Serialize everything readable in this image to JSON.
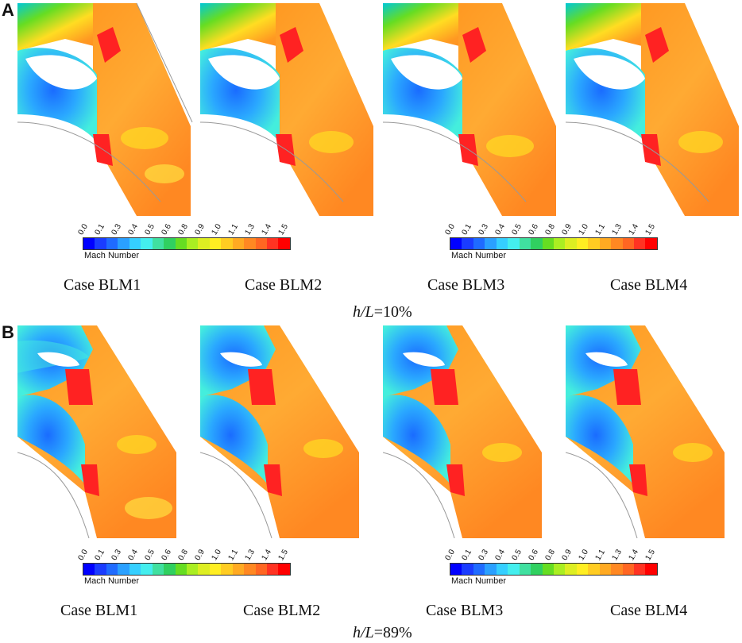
{
  "panels": [
    {
      "letter": "A",
      "cases": [
        "Case BLM1",
        "Case BLM2",
        "Case BLM3",
        "Case BLM4"
      ],
      "label_prefix": "h/L",
      "label_suffix": "=10%"
    },
    {
      "letter": "B",
      "cases": [
        "Case BLM1",
        "Case BLM2",
        "Case BLM3",
        "Case BLM4"
      ],
      "label_prefix": "h/L",
      "label_suffix": "=89%"
    }
  ],
  "colorbar": {
    "title": "Mach Number",
    "ticks": [
      "0.0",
      "0.1",
      "0.3",
      "0.4",
      "0.5",
      "0.6",
      "0.8",
      "0.9",
      "1.0",
      "1.1",
      "1.3",
      "1.4",
      "1.5"
    ],
    "colors": [
      "#0000ff",
      "#1a3cff",
      "#1f6bff",
      "#2aa0ff",
      "#35cfff",
      "#44eeee",
      "#40e0a0",
      "#30d060",
      "#66dd22",
      "#aaee22",
      "#ddee22",
      "#ffee22",
      "#ffcc22",
      "#ffaa22",
      "#ff8822",
      "#ff6622",
      "#ff3322",
      "#ff0000"
    ]
  }
}
